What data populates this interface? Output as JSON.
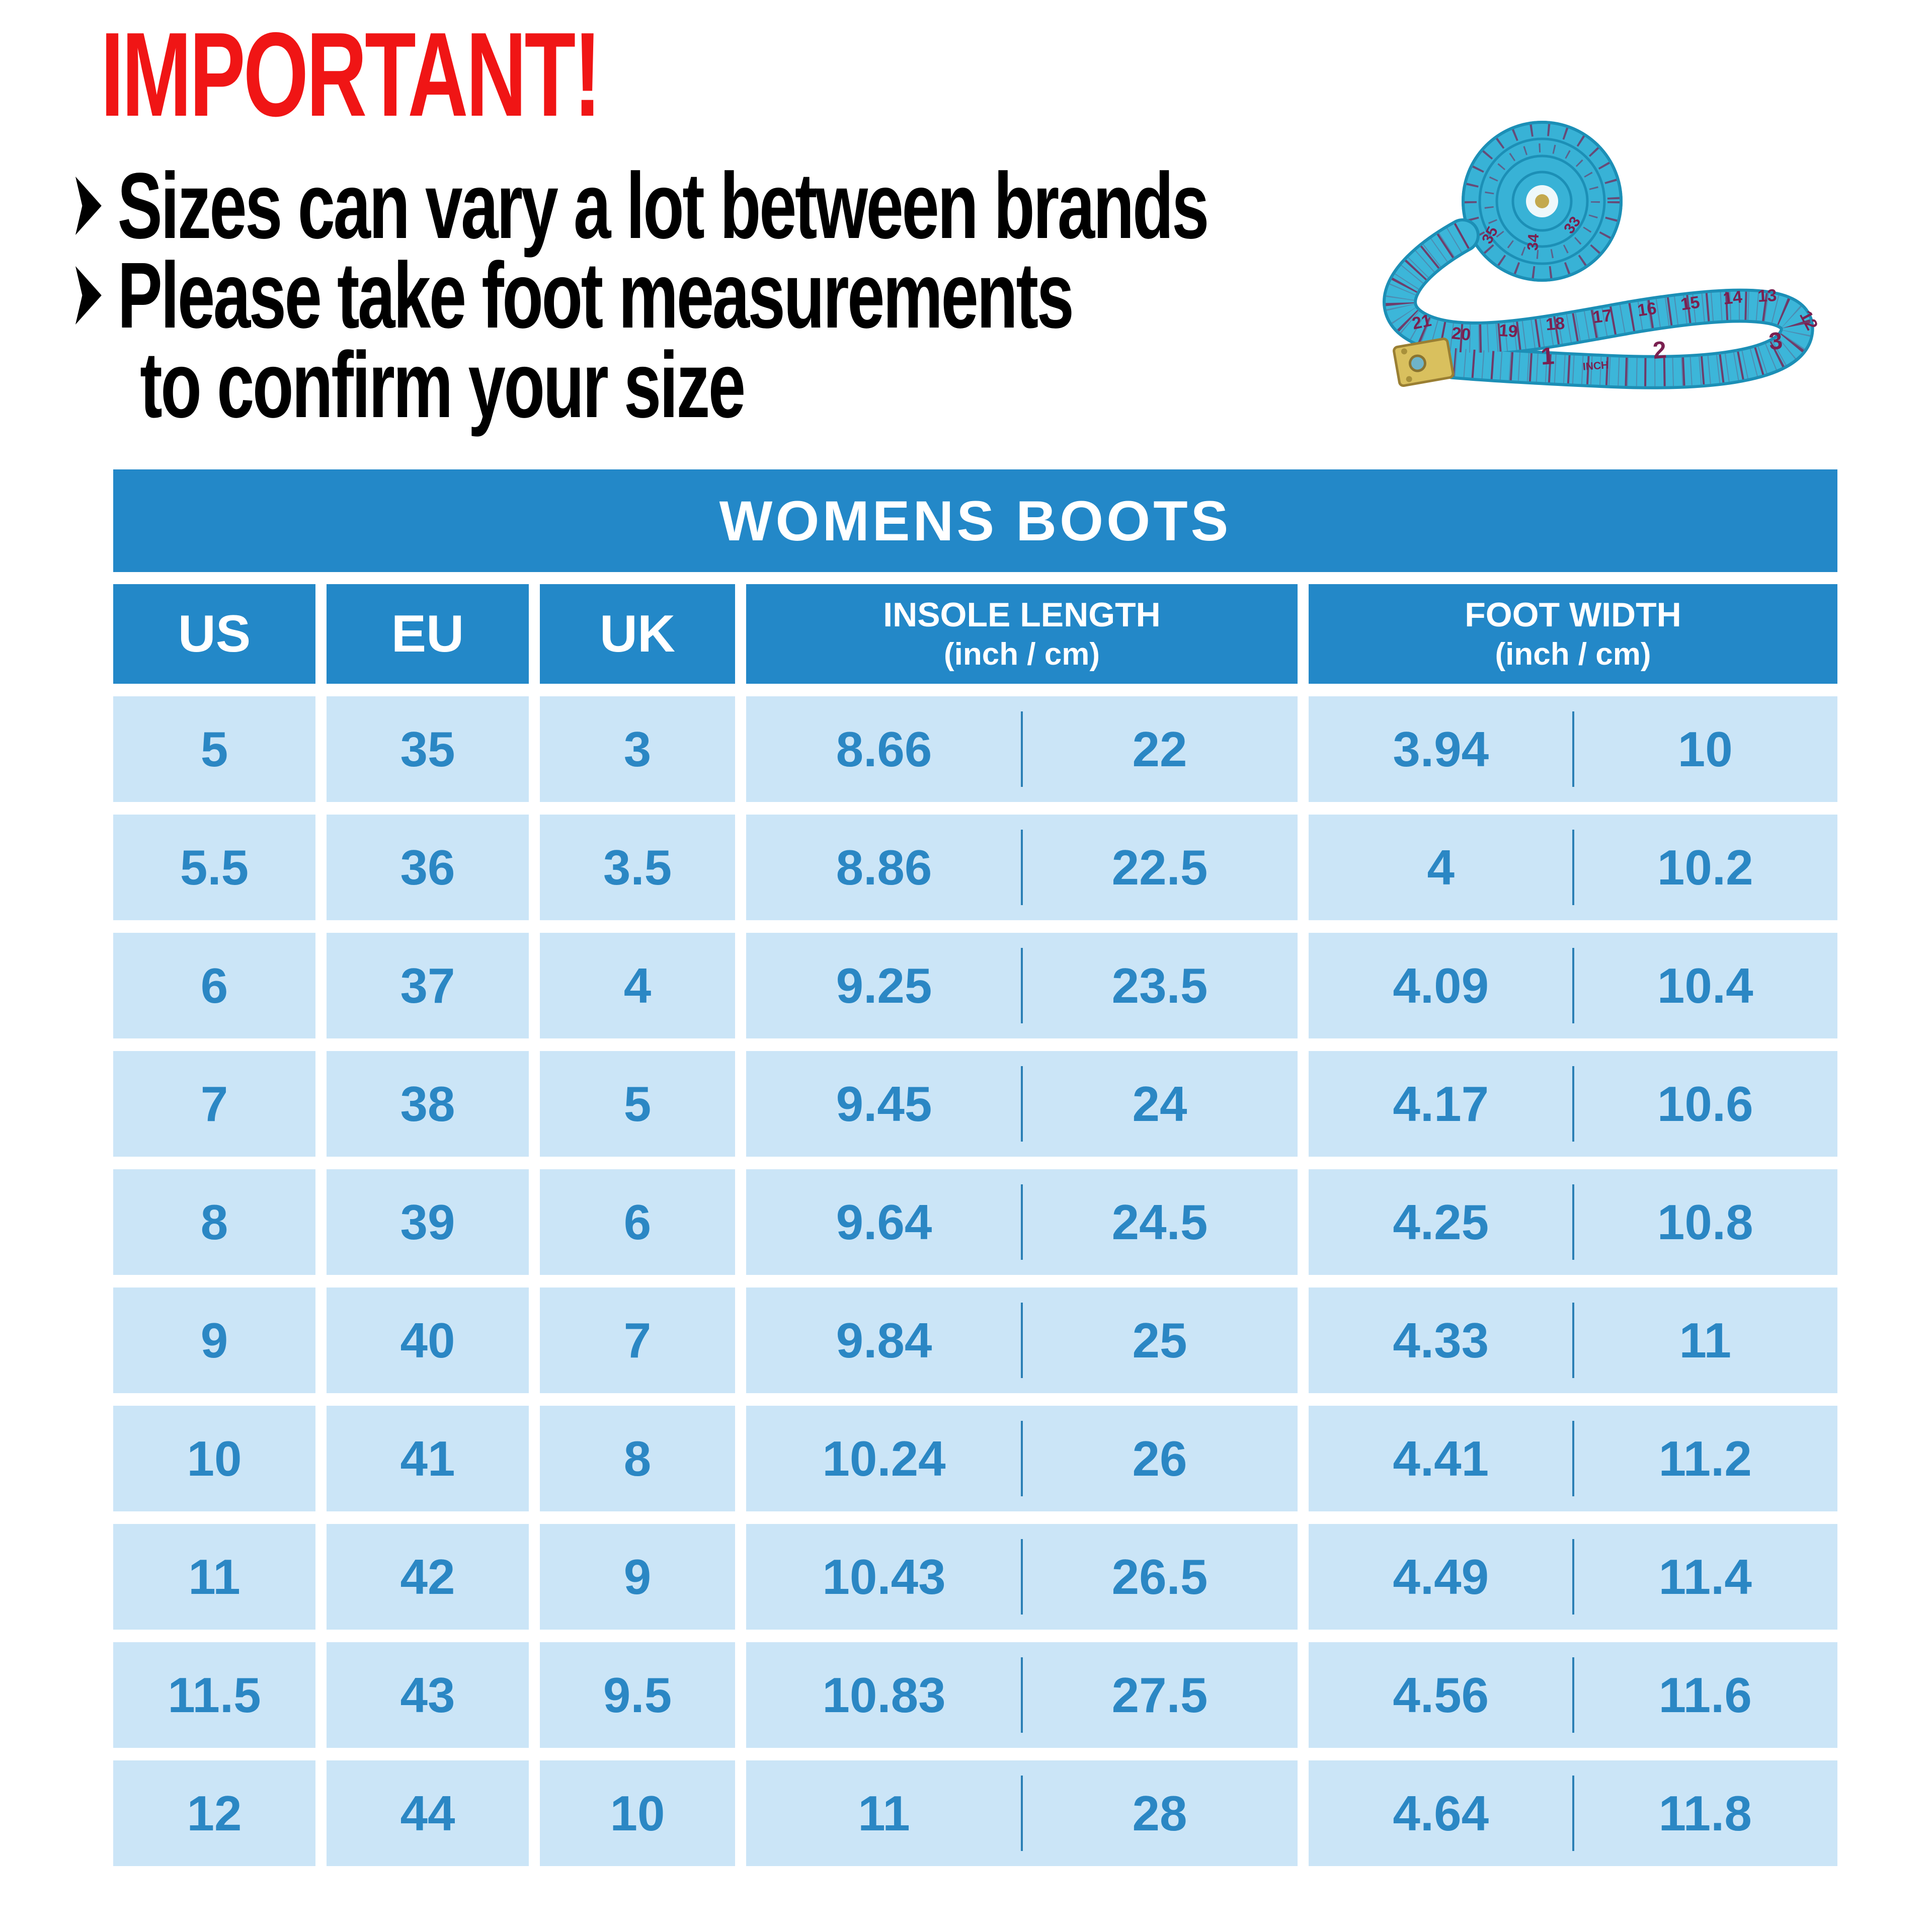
{
  "notice": {
    "title": "IMPORTANT!",
    "lines": [
      {
        "text": "Sizes can vary a lot between brands"
      },
      {
        "text": "Please take foot measurements"
      },
      {
        "text": "to confirm your size"
      }
    ]
  },
  "tape": {
    "unit_label": "INCH",
    "inch_numbers": [
      "1",
      "2",
      "3"
    ],
    "band_numbers": [
      "21",
      "20",
      "19",
      "18",
      "17",
      "16",
      "15",
      "14",
      "13",
      "12"
    ],
    "coil_numbers": [
      "35",
      "34",
      "33"
    ]
  },
  "chart_data": {
    "type": "table",
    "title": "WOMENS BOOTS",
    "column_groups": [
      {
        "label": "US",
        "sub": ""
      },
      {
        "label": "EU",
        "sub": ""
      },
      {
        "label": "UK",
        "sub": ""
      },
      {
        "label": "INSOLE LENGTH",
        "sub": "(inch / cm)"
      },
      {
        "label": "FOOT WIDTH",
        "sub": "(inch / cm)"
      }
    ],
    "rows": [
      [
        "5",
        "35",
        "3",
        "8.66",
        "22",
        "3.94",
        "10"
      ],
      [
        "5.5",
        "36",
        "3.5",
        "8.86",
        "22.5",
        "4",
        "10.2"
      ],
      [
        "6",
        "37",
        "4",
        "9.25",
        "23.5",
        "4.09",
        "10.4"
      ],
      [
        "7",
        "38",
        "5",
        "9.45",
        "24",
        "4.17",
        "10.6"
      ],
      [
        "8",
        "39",
        "6",
        "9.64",
        "24.5",
        "4.25",
        "10.8"
      ],
      [
        "9",
        "40",
        "7",
        "9.84",
        "25",
        "4.33",
        "11"
      ],
      [
        "10",
        "41",
        "8",
        "10.24",
        "26",
        "4.41",
        "11.2"
      ],
      [
        "11",
        "42",
        "9",
        "10.43",
        "26.5",
        "4.49",
        "11.4"
      ],
      [
        "11.5",
        "43",
        "9.5",
        "10.83",
        "27.5",
        "4.56",
        "11.6"
      ],
      [
        "12",
        "44",
        "10",
        "11",
        "28",
        "4.64",
        "11.8"
      ]
    ]
  },
  "colors": {
    "heading_red": "#f01515",
    "header_blue": "#2388c8",
    "cell_blue": "#cbe5f7",
    "value_blue": "#2b87c4",
    "tape_blue": "#3cb6d9",
    "tape_edge_blue": "#1c8fb6",
    "tape_marking": "#7a2050",
    "tape_tip_gold": "#d9c05e"
  }
}
